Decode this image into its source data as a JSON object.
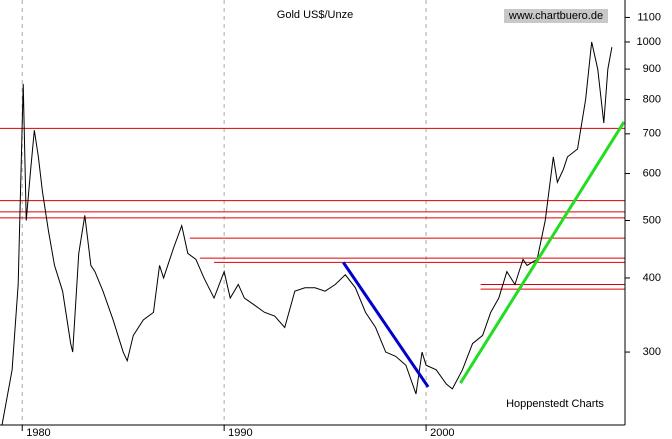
{
  "chart_data": {
    "type": "line",
    "title": "Gold US$/Unze",
    "source": "www.chartbuero.de",
    "credit": "Hoppenstedt Charts",
    "log_y": true,
    "grid_x": true,
    "xlim": [
      1978.9,
      2009.85
    ],
    "xticks": [
      1980,
      1990,
      2000
    ],
    "ylim": [
      226,
      1177
    ],
    "yticks": [
      300,
      400,
      500,
      600,
      700,
      800,
      900,
      1000,
      1100
    ],
    "x": [
      1979.0,
      1979.5,
      1979.8,
      1980.05,
      1980.2,
      1980.4,
      1980.6,
      1980.8,
      1981.0,
      1981.3,
      1981.6,
      1982.0,
      1982.4,
      1982.5,
      1982.8,
      1983.1,
      1983.4,
      1983.6,
      1984.0,
      1984.5,
      1985.0,
      1985.2,
      1985.5,
      1986.0,
      1986.5,
      1986.8,
      1987.0,
      1987.5,
      1987.9,
      1988.2,
      1988.6,
      1989.0,
      1989.5,
      1990.0,
      1990.3,
      1990.7,
      1991.0,
      1991.5,
      1992.0,
      1992.5,
      1993.0,
      1993.5,
      1994.0,
      1994.5,
      1995.0,
      1995.5,
      1996.0,
      1996.5,
      1997.0,
      1997.5,
      1998.0,
      1998.5,
      1999.0,
      1999.5,
      1999.8,
      2000.0,
      2000.5,
      2001.0,
      2001.3,
      2001.8,
      2002.3,
      2002.8,
      2003.2,
      2003.6,
      2004.0,
      2004.4,
      2004.8,
      2005.0,
      2005.5,
      2005.9,
      2006.3,
      2006.5,
      2006.8,
      2007.0,
      2007.5,
      2007.9,
      2008.2,
      2008.5,
      2008.8,
      2009.0,
      2009.2
    ],
    "series": [
      {
        "color": "#000000",
        "values": [
          226,
          280,
          390,
          850,
          500,
          600,
          710,
          640,
          560,
          480,
          420,
          380,
          310,
          300,
          440,
          510,
          420,
          410,
          380,
          340,
          300,
          290,
          320,
          340,
          350,
          420,
          400,
          450,
          490,
          440,
          430,
          400,
          370,
          410,
          370,
          390,
          370,
          360,
          350,
          345,
          330,
          380,
          385,
          385,
          380,
          390,
          405,
          385,
          350,
          330,
          300,
          295,
          285,
          255,
          300,
          285,
          280,
          265,
          260,
          280,
          310,
          320,
          350,
          370,
          410,
          390,
          430,
          420,
          430,
          500,
          640,
          580,
          610,
          640,
          660,
          800,
          1000,
          900,
          730,
          900,
          980
        ]
      }
    ],
    "reference_lines": {
      "color": "#dd0000",
      "x_start": [
        1978.9,
        1978.9,
        1978.9,
        1978.9,
        1988.3,
        1988.8,
        1989.5,
        2002.7,
        2002.7
      ],
      "values": [
        715,
        540,
        517,
        505,
        467,
        432,
        425,
        390,
        383
      ]
    },
    "trend_lines": [
      {
        "color": "#0000cc",
        "x": [
          1995.9,
          2000.1
        ],
        "values": [
          425,
          262
        ]
      },
      {
        "color": "#22dd22",
        "x": [
          2001.7,
          2009.8
        ],
        "values": [
          266,
          733
        ]
      }
    ]
  }
}
